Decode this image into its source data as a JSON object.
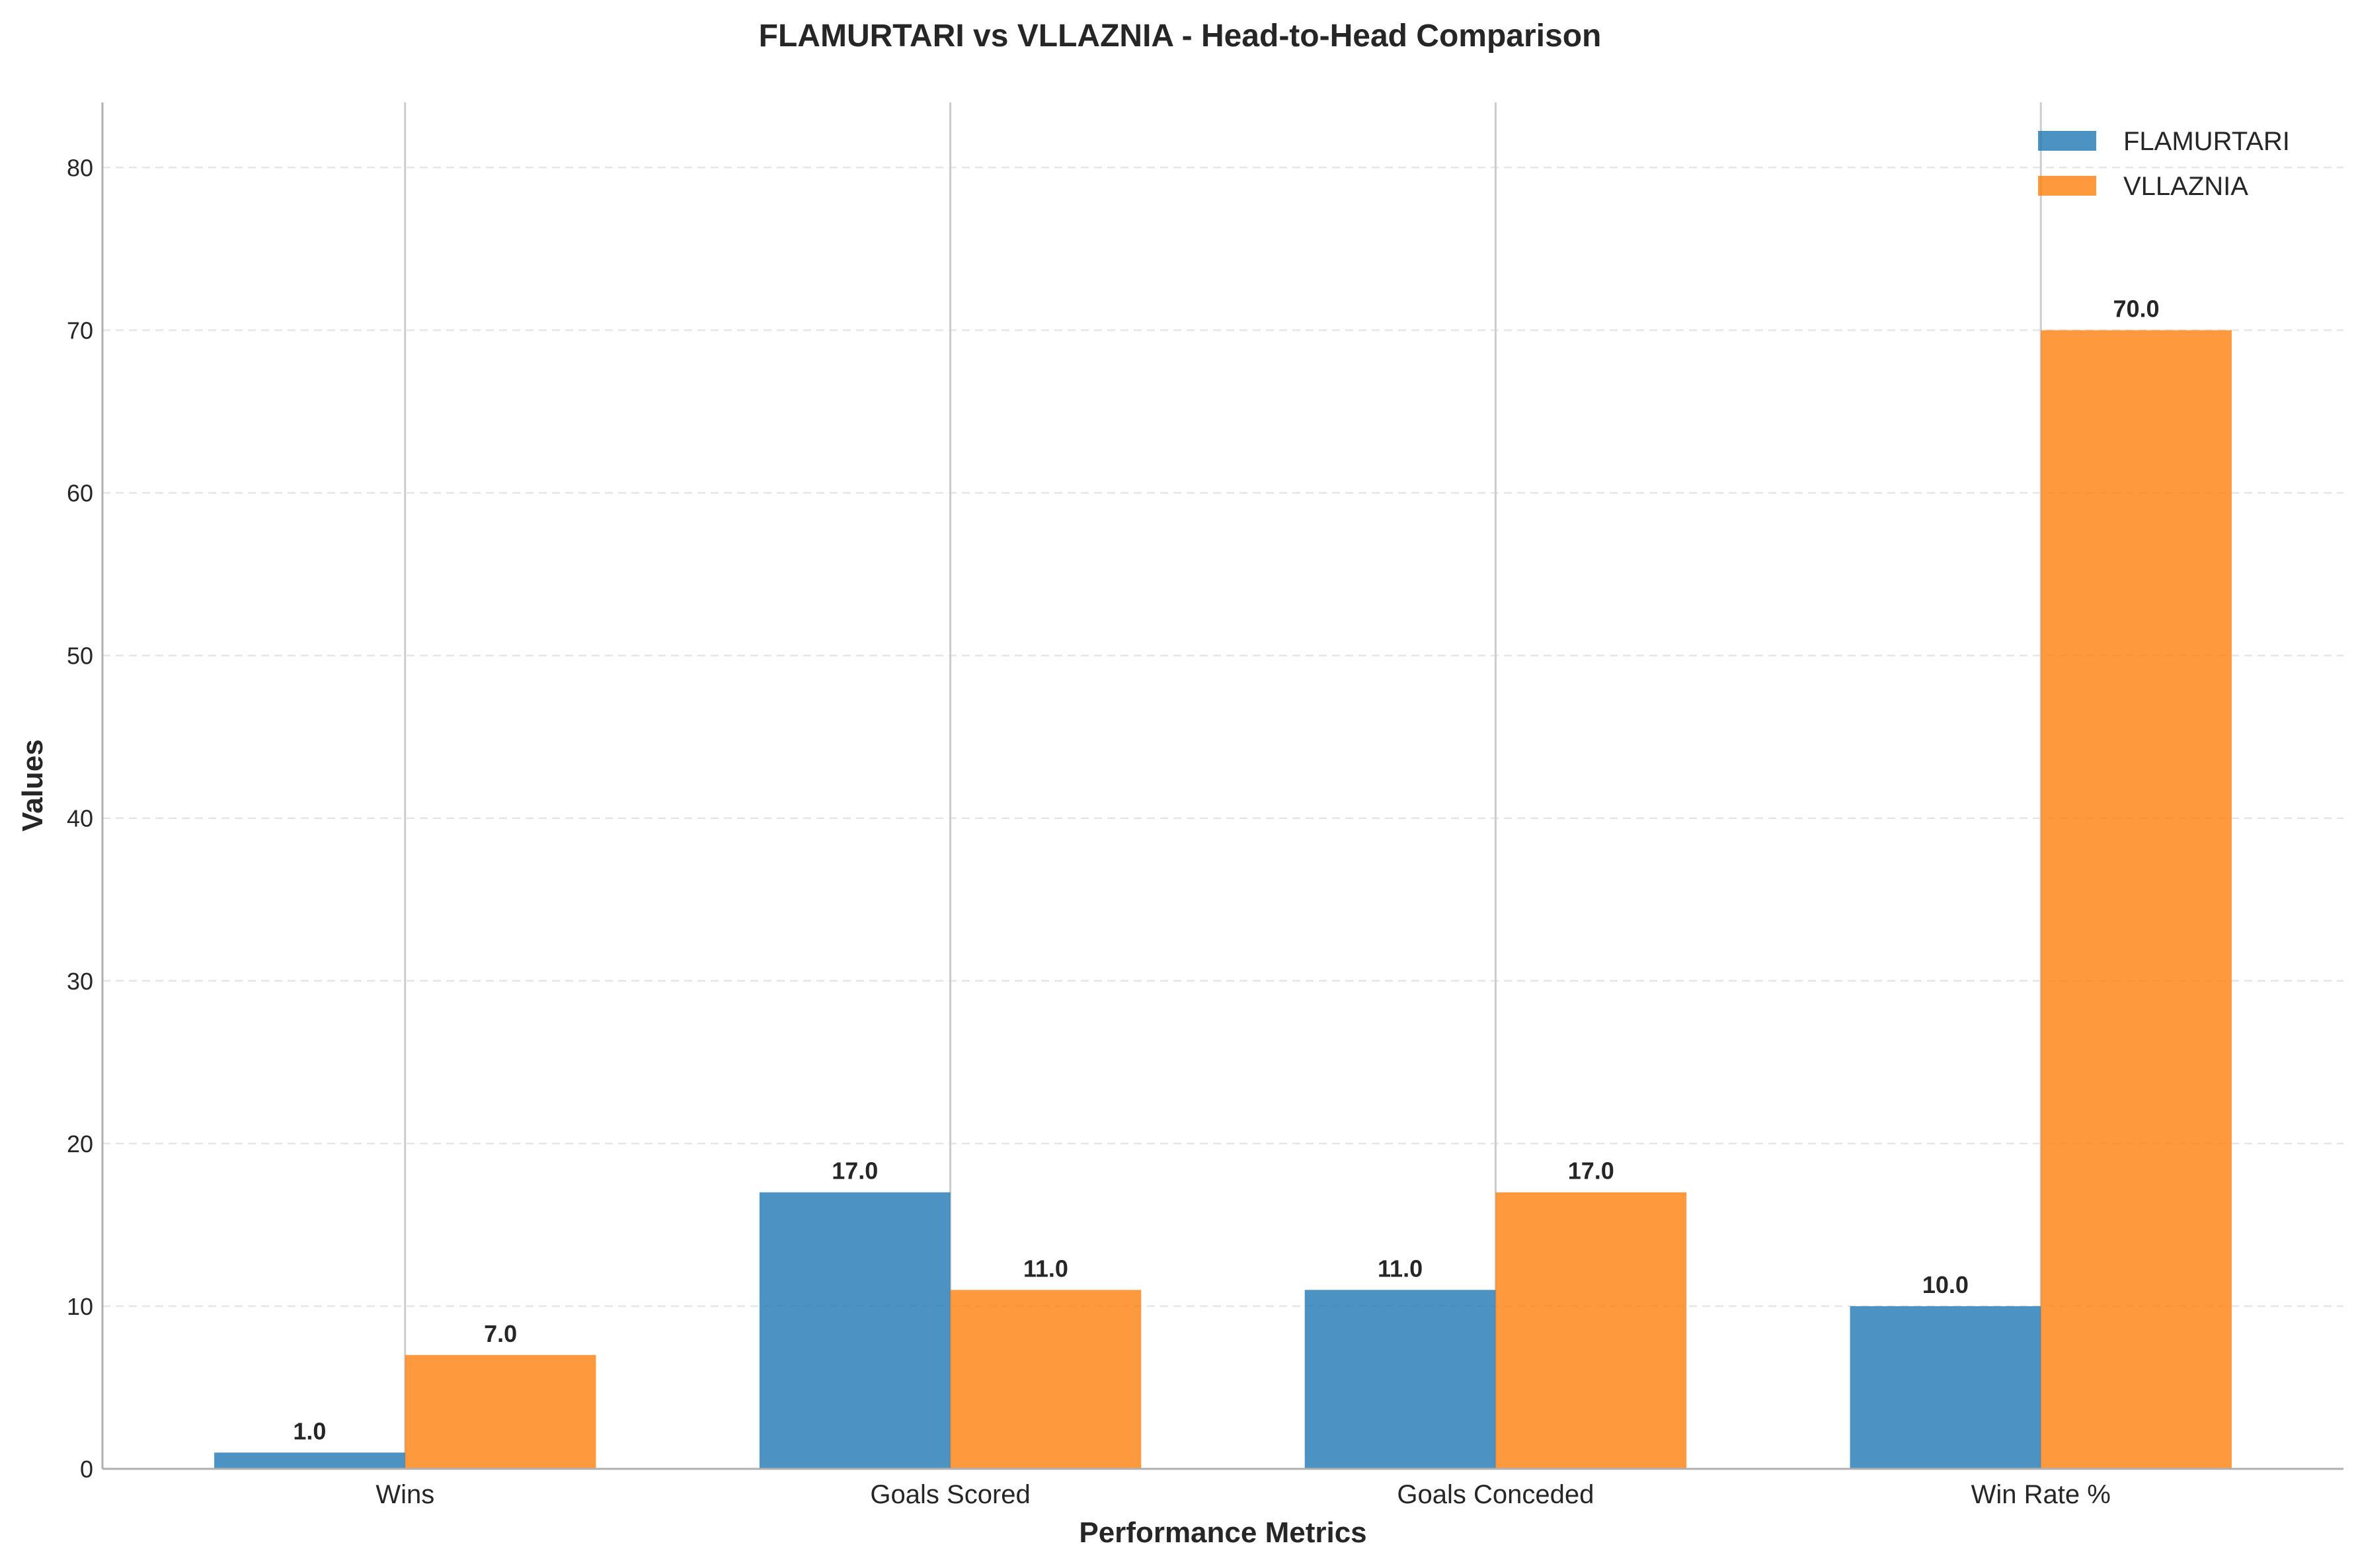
{
  "chart_data": {
    "type": "bar",
    "title": "FLAMURTARI vs VLLAZNIA - Head-to-Head Comparison",
    "xlabel": "Performance Metrics",
    "ylabel": "Values",
    "categories": [
      "Wins",
      "Goals Scored",
      "Goals Conceded",
      "Win Rate %"
    ],
    "series": [
      {
        "name": "FLAMURTARI",
        "values": [
          1.0,
          17.0,
          11.0,
          10.0
        ],
        "color": "#1f77b4",
        "labels": [
          "1.0",
          "17.0",
          "11.0",
          "10.0"
        ]
      },
      {
        "name": "VLLAZNIA",
        "values": [
          7.0,
          11.0,
          17.0,
          70.0
        ],
        "color": "#ff7f0e",
        "labels": [
          "7.0",
          "11.0",
          "17.0",
          "70.0"
        ]
      }
    ],
    "ylim": [
      0,
      84
    ],
    "yticks": [
      0,
      10,
      20,
      30,
      40,
      50,
      60,
      70,
      80
    ],
    "ytick_labels": [
      "0",
      "10",
      "20",
      "30",
      "40",
      "50",
      "60",
      "70",
      "80"
    ],
    "grid": "y-dashed",
    "legend_position": "top-right"
  }
}
